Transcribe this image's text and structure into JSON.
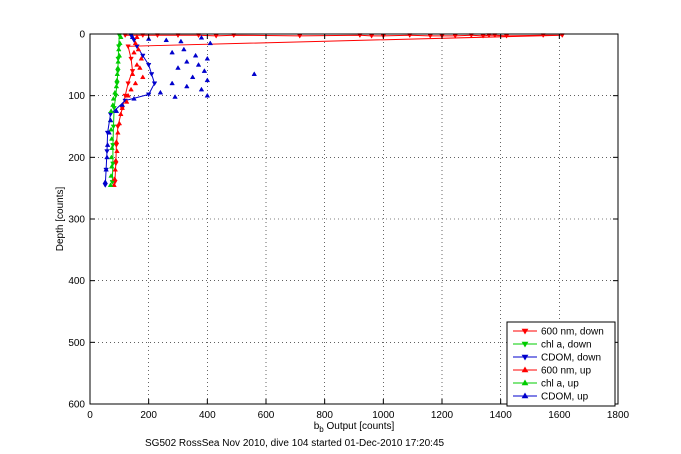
{
  "chart_data": {
    "type": "scatter",
    "title": "",
    "footer": "SG502 RossSea Nov 2010, dive 104 started 01-Dec-2010 17:20:45",
    "xlabel": {
      "pre": "b",
      "sub": "b",
      "post": " Output [counts]"
    },
    "ylabel": "Depth [counts]",
    "xlim": [
      0,
      1800
    ],
    "ylim": [
      600,
      0
    ],
    "x_ticks": [
      0,
      200,
      400,
      600,
      800,
      1000,
      1200,
      1400,
      1600,
      1800
    ],
    "y_ticks": [
      0,
      100,
      200,
      300,
      400,
      500,
      600
    ],
    "grid": true,
    "legend_position": "bottom-right",
    "series": [
      {
        "name": "600 nm, down",
        "color": "#ff0000",
        "marker": "triangle-down",
        "line": true,
        "points": [
          [
            120,
            2
          ],
          [
            180,
            2
          ],
          [
            230,
            2
          ],
          [
            300,
            2
          ],
          [
            370,
            2
          ],
          [
            430,
            3
          ],
          [
            490,
            2
          ],
          [
            715,
            3
          ],
          [
            920,
            2
          ],
          [
            960,
            3
          ],
          [
            1000,
            3
          ],
          [
            1090,
            2
          ],
          [
            1160,
            3
          ],
          [
            1200,
            3
          ],
          [
            1245,
            3
          ],
          [
            1300,
            2
          ],
          [
            1340,
            3
          ],
          [
            1360,
            2
          ],
          [
            1380,
            2
          ],
          [
            1420,
            3
          ],
          [
            1545,
            2
          ],
          [
            1610,
            2
          ],
          [
            130,
            20
          ],
          [
            140,
            40
          ],
          [
            145,
            60
          ],
          [
            130,
            80
          ],
          [
            120,
            100
          ],
          [
            110,
            120
          ],
          [
            95,
            150
          ],
          [
            90,
            180
          ],
          [
            88,
            210
          ],
          [
            85,
            240
          ]
        ]
      },
      {
        "name": "chl a, down",
        "color": "#00cc00",
        "marker": "triangle-down",
        "line": true,
        "points": [
          [
            100,
            2
          ],
          [
            98,
            20
          ],
          [
            96,
            40
          ],
          [
            95,
            60
          ],
          [
            92,
            80
          ],
          [
            88,
            100
          ],
          [
            82,
            120
          ],
          [
            80,
            150
          ],
          [
            78,
            180
          ],
          [
            78,
            210
          ],
          [
            76,
            240
          ]
        ]
      },
      {
        "name": "CDOM, down",
        "color": "#0000cc",
        "marker": "triangle-down",
        "line": true,
        "points": [
          [
            140,
            2
          ],
          [
            150,
            10
          ],
          [
            160,
            20
          ],
          [
            180,
            35
          ],
          [
            200,
            50
          ],
          [
            210,
            65
          ],
          [
            220,
            80
          ],
          [
            200,
            98
          ],
          [
            120,
            108
          ],
          [
            70,
            130
          ],
          [
            60,
            160
          ],
          [
            58,
            190
          ],
          [
            55,
            220
          ],
          [
            52,
            245
          ]
        ]
      },
      {
        "name": "600 nm, up",
        "color": "#ff0000",
        "marker": "triangle-up",
        "line": false,
        "points": [
          [
            160,
            5
          ],
          [
            155,
            15
          ],
          [
            165,
            25
          ],
          [
            150,
            30
          ],
          [
            175,
            40
          ],
          [
            160,
            50
          ],
          [
            170,
            55
          ],
          [
            145,
            65
          ],
          [
            180,
            70
          ],
          [
            155,
            80
          ],
          [
            140,
            90
          ],
          [
            130,
            100
          ],
          [
            125,
            110
          ],
          [
            110,
            120
          ],
          [
            105,
            130
          ],
          [
            100,
            145
          ],
          [
            95,
            160
          ],
          [
            90,
            175
          ],
          [
            92,
            190
          ],
          [
            88,
            205
          ],
          [
            86,
            220
          ],
          [
            84,
            235
          ],
          [
            82,
            245
          ]
        ]
      },
      {
        "name": "chl a, up",
        "color": "#00cc00",
        "marker": "triangle-up",
        "line": false,
        "points": [
          [
            105,
            5
          ],
          [
            102,
            15
          ],
          [
            98,
            25
          ],
          [
            100,
            35
          ],
          [
            96,
            45
          ],
          [
            95,
            55
          ],
          [
            93,
            65
          ],
          [
            92,
            75
          ],
          [
            90,
            85
          ],
          [
            85,
            95
          ],
          [
            80,
            105
          ],
          [
            78,
            115
          ],
          [
            72,
            125
          ],
          [
            70,
            140
          ],
          [
            72,
            155
          ],
          [
            74,
            170
          ],
          [
            75,
            185
          ],
          [
            73,
            200
          ],
          [
            74,
            215
          ],
          [
            72,
            230
          ],
          [
            70,
            245
          ]
        ]
      },
      {
        "name": "CDOM, up",
        "color": "#0000cc",
        "marker": "triangle-up",
        "line": false,
        "points": [
          [
            145,
            5
          ],
          [
            200,
            8
          ],
          [
            260,
            10
          ],
          [
            310,
            12
          ],
          [
            380,
            6
          ],
          [
            410,
            15
          ],
          [
            320,
            25
          ],
          [
            280,
            30
          ],
          [
            360,
            35
          ],
          [
            400,
            40
          ],
          [
            330,
            45
          ],
          [
            370,
            50
          ],
          [
            300,
            55
          ],
          [
            390,
            60
          ],
          [
            560,
            65
          ],
          [
            350,
            70
          ],
          [
            400,
            75
          ],
          [
            280,
            80
          ],
          [
            330,
            85
          ],
          [
            380,
            90
          ],
          [
            240,
            95
          ],
          [
            400,
            100
          ],
          [
            290,
            102
          ],
          [
            150,
            105
          ],
          [
            110,
            115
          ],
          [
            90,
            125
          ],
          [
            70,
            140
          ],
          [
            65,
            160
          ],
          [
            60,
            180
          ],
          [
            58,
            200
          ],
          [
            55,
            220
          ],
          [
            52,
            240
          ]
        ]
      }
    ]
  }
}
